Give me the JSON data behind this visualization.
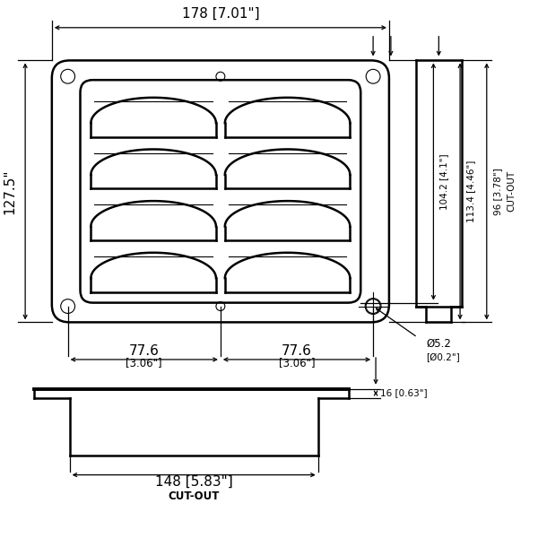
{
  "bg_color": "#ffffff",
  "line_color": "#000000",
  "fig_width": 6.0,
  "fig_height": 6.0,
  "dpi": 100,
  "annotations": {
    "dim_178": "178 [7.01\"]",
    "dim_127_5": "127.5\"",
    "dim_104_2": "104.2 [4.1\"]",
    "dim_113_4": "113.4 [4.46\"]",
    "dim_96": "96 [3.78\"]",
    "dim_77_6": "77.6",
    "dim_306": "[3.06\"]",
    "dim_d52": "Ø5.2",
    "dim_d02": "[Ø0.2\"]",
    "dim_148": "148 [5.83\"]",
    "dim_16": "16 [0.63\"]",
    "cutout": "CUT-OUT",
    "fs_xl": 11,
    "fs_l": 10,
    "fs_m": 8.5,
    "fs_s": 7.5
  }
}
